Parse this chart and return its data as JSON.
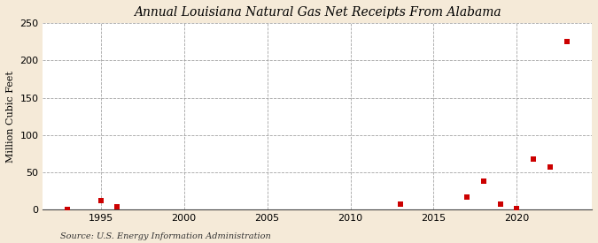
{
  "title": "Annual Louisiana Natural Gas Net Receipts From Alabama",
  "ylabel": "Million Cubic Feet",
  "source": "Source: U.S. Energy Information Administration",
  "background_color": "#f5ead8",
  "plot_background_color": "#ffffff",
  "marker_color": "#cc0000",
  "marker_size": 4,
  "xlim": [
    1991.5,
    2024.5
  ],
  "ylim": [
    0,
    250
  ],
  "yticks": [
    0,
    50,
    100,
    150,
    200,
    250
  ],
  "xticks": [
    1995,
    2000,
    2005,
    2010,
    2015,
    2020
  ],
  "years": [
    1993,
    1995,
    1996,
    2013,
    2017,
    2018,
    2019,
    2020,
    2021,
    2022,
    2023
  ],
  "values": [
    1,
    12,
    4,
    8,
    17,
    38,
    7,
    2,
    68,
    57,
    225
  ]
}
